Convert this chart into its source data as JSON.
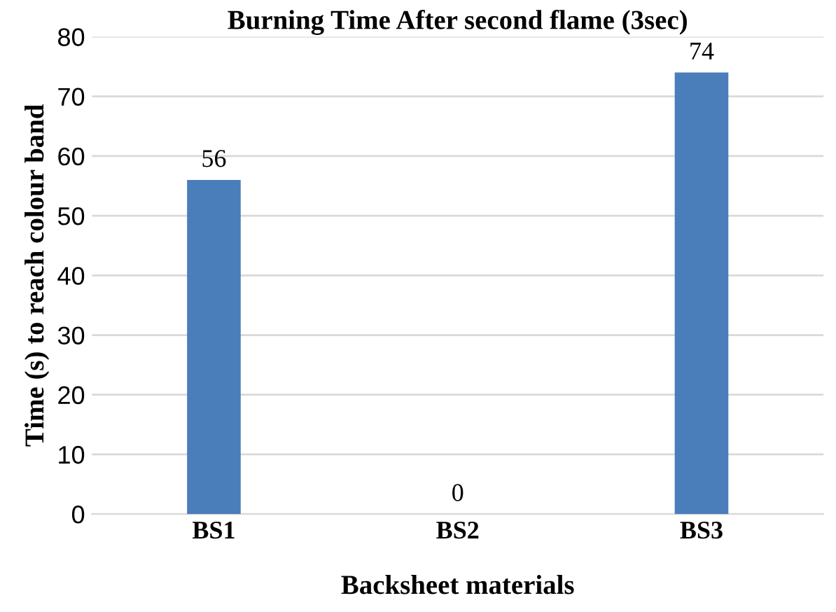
{
  "chart_data": {
    "type": "bar",
    "title": "Burning Time After second flame (3sec)",
    "xlabel": "Backsheet materials",
    "ylabel": "Time (s) to reach colour band",
    "categories": [
      "BS1",
      "BS2",
      "BS3"
    ],
    "series": [
      {
        "color": "#4a7ebb",
        "values": [
          56,
          0,
          74
        ]
      }
    ],
    "ylim": [
      0,
      80
    ],
    "yticks": [
      0,
      10,
      20,
      30,
      40,
      50,
      60,
      70,
      80
    ],
    "grid": "y",
    "data_labels": true,
    "legend": false
  }
}
